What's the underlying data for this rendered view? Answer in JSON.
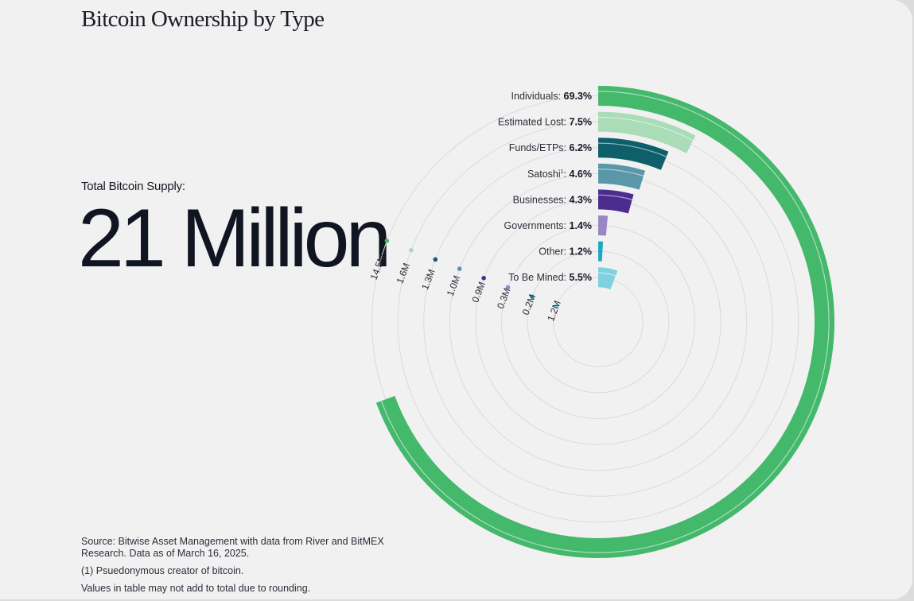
{
  "title": "Bitcoin Ownership by Type",
  "supply": {
    "label": "Total Bitcoin Supply:",
    "value": "21 Million"
  },
  "notes": {
    "source": "Source: Bitwise Asset Management with data from River and BitMEX Research. Data as of March 16, 2025.",
    "footnote": "(1) Psuedonymous creator of bitcoin.",
    "rounding": "Values in table may not add to total due to rounding."
  },
  "chart_data": {
    "type": "radial_bar",
    "title": "Bitcoin Ownership by Type",
    "categories": [
      {
        "name": "Individuals",
        "sup": "",
        "percent": "69.3%",
        "value": 14.5,
        "value_label": "14.5M",
        "color": "#44b86b"
      },
      {
        "name": "Estimated Lost",
        "sup": "",
        "percent": "7.5%",
        "value": 1.6,
        "value_label": "1.6M",
        "color": "#a9dcb7"
      },
      {
        "name": "Funds/ETPs",
        "sup": "",
        "percent": "6.2%",
        "value": 1.3,
        "value_label": "1.3M",
        "color": "#0f5f6b"
      },
      {
        "name": "Satoshi",
        "sup": "1",
        "percent": "4.6%",
        "value": 1.0,
        "value_label": "1.0M",
        "color": "#5a97a8"
      },
      {
        "name": "Businesses",
        "sup": "",
        "percent": "4.3%",
        "value": 0.9,
        "value_label": "0.9M",
        "color": "#4b2c8f"
      },
      {
        "name": "Governments",
        "sup": "",
        "percent": "1.4%",
        "value": 0.3,
        "value_label": "0.3M",
        "color": "#9a86c6"
      },
      {
        "name": "Other",
        "sup": "",
        "percent": "1.2%",
        "value": 0.2,
        "value_label": "0.2M",
        "color": "#1ea9c2"
      },
      {
        "name": "To Be Mined",
        "sup": "",
        "percent": "5.5%",
        "value": 1.2,
        "value_label": "1.2M",
        "color": "#7fd1e0"
      }
    ],
    "total": 21,
    "unit": "M",
    "grid": true
  }
}
